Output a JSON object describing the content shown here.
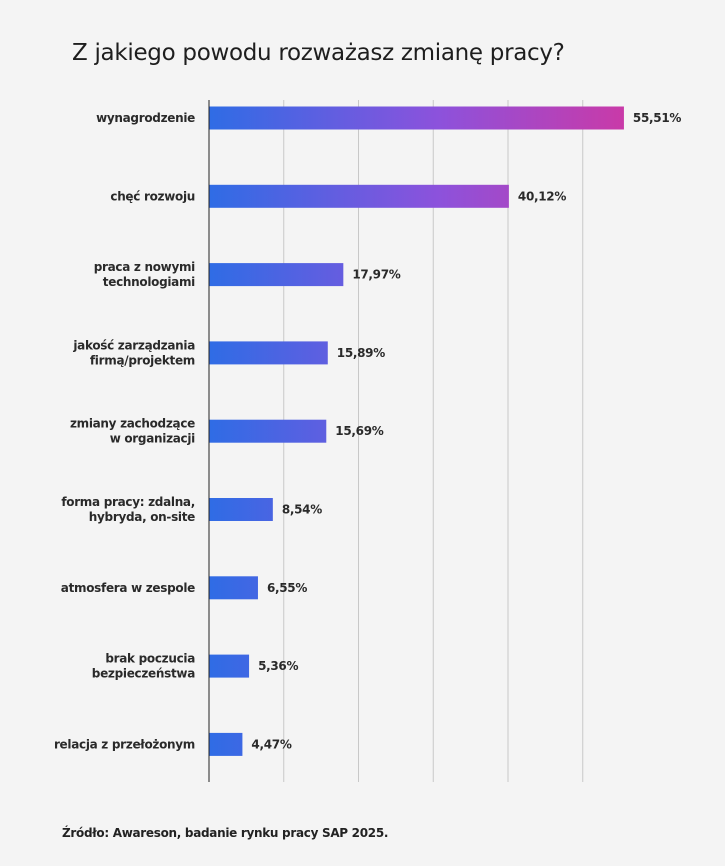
{
  "chart_data": {
    "type": "bar",
    "orientation": "horizontal",
    "title": "Z jakiego powodu rozważasz zmianę pracy?",
    "categories": [
      [
        "wynagrodzenie"
      ],
      [
        "chęć rozwoju"
      ],
      [
        "praca z nowymi",
        "technologiami"
      ],
      [
        "jakość zarządzania",
        "firmą/projektem"
      ],
      [
        "zmiany zachodzące",
        "w organizacji"
      ],
      [
        "forma pracy: zdalna,",
        "hybryda, on-site"
      ],
      [
        "atmosfera w zespole"
      ],
      [
        "brak poczucia",
        "bezpieczeństwa"
      ],
      [
        "relacja z przełożonym"
      ]
    ],
    "values": [
      55.51,
      40.12,
      17.97,
      15.89,
      15.69,
      8.54,
      6.55,
      5.36,
      4.47
    ],
    "value_labels": [
      "55,51%",
      "40,12%",
      "17,97%",
      "15,89%",
      "15,69%",
      "8,54%",
      "6,55%",
      "5,36%",
      "4,47%"
    ],
    "xlabel": "",
    "ylabel": "",
    "xlim": [
      0,
      60
    ],
    "gridlines_x": [
      10,
      20,
      30,
      40,
      50
    ],
    "grid": true,
    "legend": "none",
    "colors": {
      "gradient_start": "#2f6ce5",
      "gradient_mid": "#8c52dc",
      "gradient_end": "#c93aa8",
      "grid": "#c8c8c8",
      "axis": "#222222"
    }
  },
  "source": "Źródło: Awareson, badanie rynku pracy SAP 2025."
}
